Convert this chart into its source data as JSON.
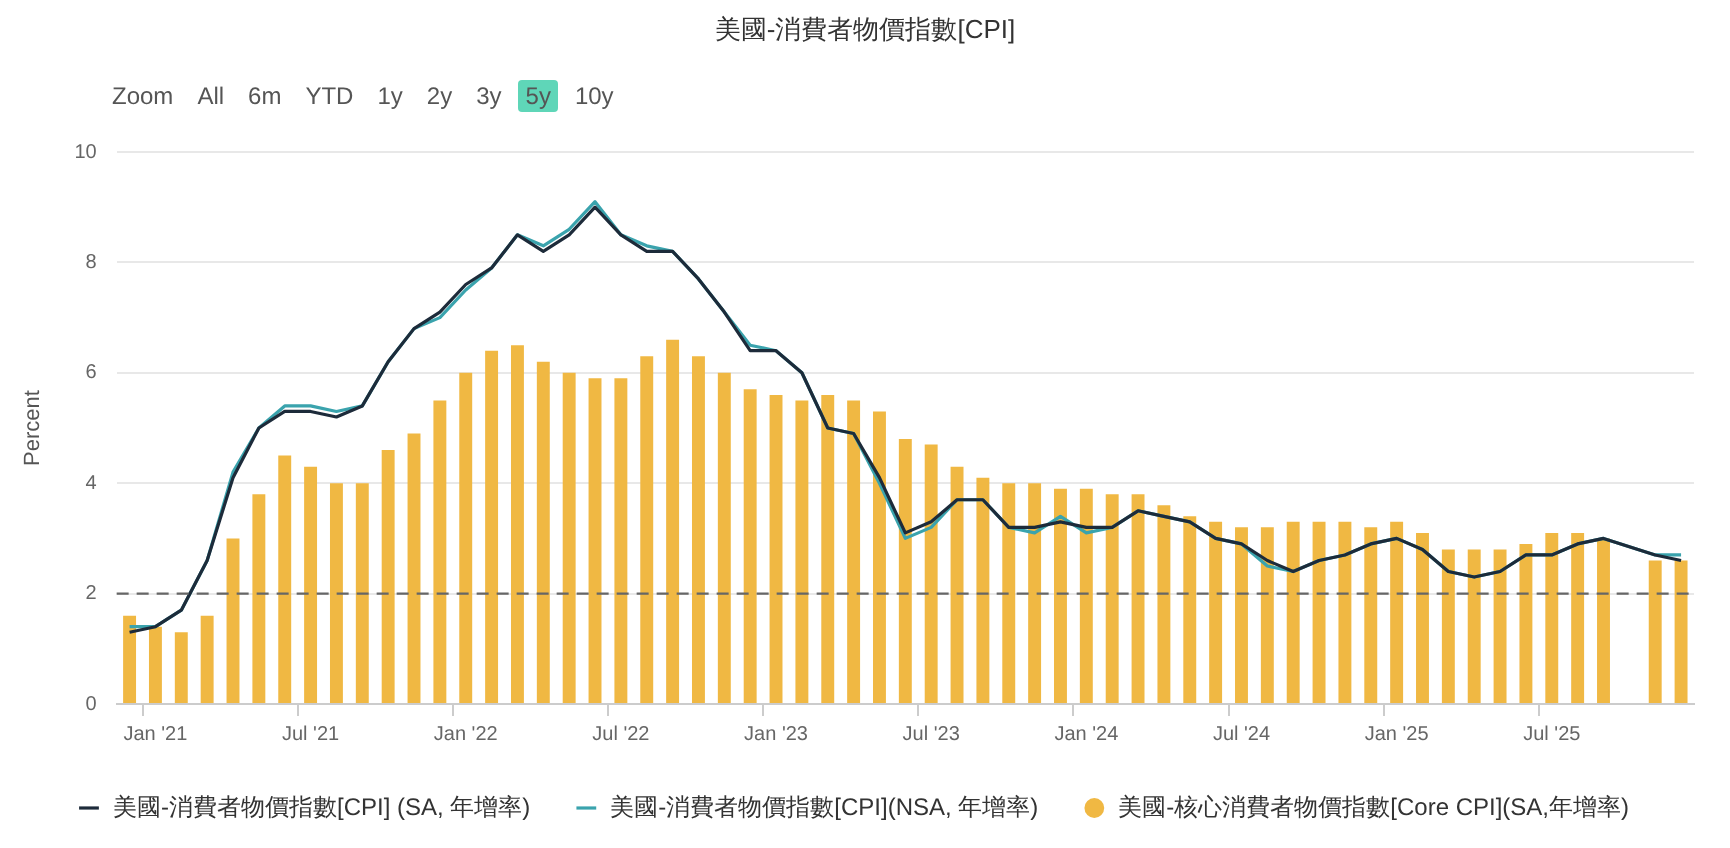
{
  "chart_data": {
    "type": "bar",
    "title": "美國-消費者物價指數[CPI]",
    "ylabel": "Percent",
    "annotations": [
      "Zoom",
      "All",
      "6m",
      "YTD",
      "1y",
      "2y",
      "3y",
      "5y",
      "10y"
    ],
    "categories": [
      null,
      "Jan '21",
      null,
      null,
      null,
      null,
      null,
      "Jul '21",
      null,
      null,
      null,
      null,
      null,
      "Jan '22",
      null,
      null,
      null,
      null,
      null,
      "Jul '22",
      null,
      null,
      null,
      null,
      null,
      "Jan '23",
      null,
      null,
      null,
      null,
      null,
      "Jul '23",
      null,
      null,
      null,
      null,
      null,
      "Jan '24",
      null,
      null,
      null,
      null,
      null,
      "Jul '24",
      null,
      null,
      null,
      null,
      null,
      "Jan '25",
      null,
      null,
      null,
      null,
      null,
      "Jul '25",
      null,
      null,
      null,
      null,
      null
    ],
    "series": [
      {
        "name": "美國-消費者物價指數[CPI] (SA, 年增率)",
        "type": "line",
        "color": "#1d2b3a",
        "values": [
          1.3,
          1.4,
          1.7,
          2.6,
          4.1,
          5.0,
          5.3,
          5.3,
          5.2,
          5.4,
          6.2,
          6.8,
          7.1,
          7.6,
          7.9,
          8.5,
          8.2,
          8.5,
          9.0,
          8.5,
          8.2,
          8.2,
          7.7,
          7.1,
          6.4,
          6.4,
          6.0,
          5.0,
          4.9,
          4.1,
          3.1,
          3.3,
          3.7,
          3.7,
          3.2,
          3.2,
          3.3,
          3.2,
          3.2,
          3.5,
          3.4,
          3.3,
          3.0,
          2.9,
          2.6,
          2.4,
          2.6,
          2.7,
          2.9,
          3.0,
          2.8,
          2.4,
          2.3,
          2.4,
          2.7,
          2.7,
          2.9,
          3.0,
          null,
          2.7,
          2.6
        ]
      },
      {
        "name": "美國-消費者物價指數[CPI](NSA, 年增率)",
        "type": "line",
        "color": "#3aa3ad",
        "values": [
          1.4,
          1.4,
          1.7,
          2.6,
          4.2,
          5.0,
          5.4,
          5.4,
          5.3,
          5.4,
          6.2,
          6.8,
          7.0,
          7.5,
          7.9,
          8.5,
          8.3,
          8.6,
          9.1,
          8.5,
          8.3,
          8.2,
          7.7,
          7.1,
          6.5,
          6.4,
          6.0,
          5.0,
          4.9,
          4.0,
          3.0,
          3.2,
          3.7,
          3.7,
          3.2,
          3.1,
          3.4,
          3.1,
          3.2,
          3.5,
          3.4,
          3.3,
          3.0,
          2.9,
          2.5,
          2.4,
          2.6,
          2.7,
          2.9,
          3.0,
          2.8,
          2.4,
          2.3,
          2.4,
          2.7,
          2.7,
          2.9,
          3.0,
          null,
          2.7,
          2.7
        ]
      },
      {
        "name": "美國-核心消費者物價指數[Core CPI](SA,年增率)",
        "type": "bar",
        "color": "#f0b843",
        "values": [
          1.6,
          1.4,
          1.3,
          1.6,
          3.0,
          3.8,
          4.5,
          4.3,
          4.0,
          4.0,
          4.6,
          4.9,
          5.5,
          6.0,
          6.4,
          6.5,
          6.2,
          6.0,
          5.9,
          5.9,
          6.3,
          6.6,
          6.3,
          6.0,
          5.7,
          5.6,
          5.5,
          5.6,
          5.5,
          5.3,
          4.8,
          4.7,
          4.3,
          4.1,
          4.0,
          4.0,
          3.9,
          3.9,
          3.8,
          3.8,
          3.6,
          3.4,
          3.3,
          3.2,
          3.2,
          3.3,
          3.3,
          3.3,
          3.2,
          3.3,
          3.1,
          2.8,
          2.8,
          2.8,
          2.9,
          3.1,
          3.1,
          3.0,
          null,
          2.6,
          2.6
        ]
      }
    ],
    "ylim": [
      0,
      10
    ],
    "yticks": [
      0,
      2,
      4,
      6,
      8,
      10
    ],
    "grid": "y",
    "legend": "bottom",
    "marker": "none",
    "ref_lines": [
      {
        "axis": "y",
        "value": 2,
        "color": "#666666",
        "line_style": "dashed"
      }
    ]
  }
}
